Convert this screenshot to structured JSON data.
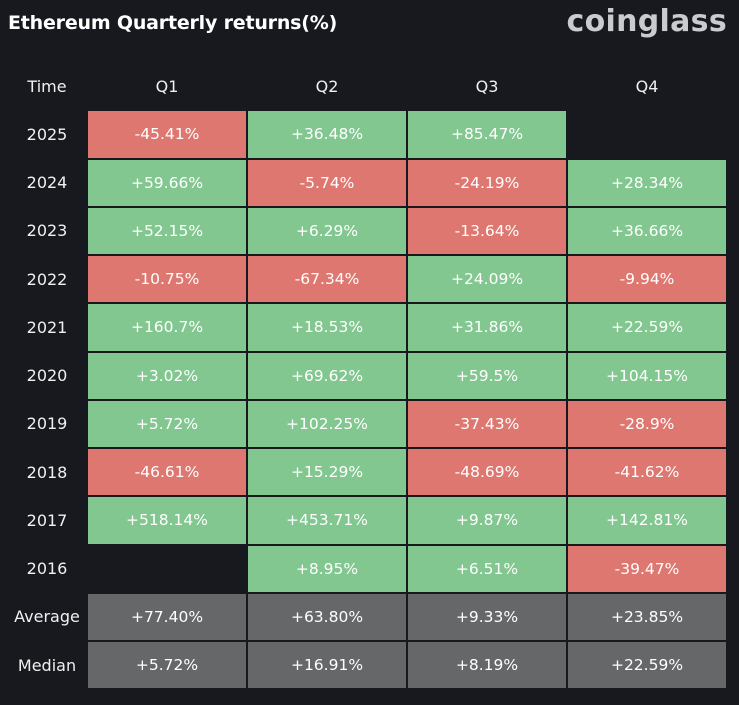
{
  "title": "Ethereum Quarterly returns(%)",
  "brand": "coinglass",
  "colors": {
    "positive": "#82c78f",
    "negative": "#df7771",
    "summary": "#666769",
    "background": "#17191f"
  },
  "chart_data": {
    "type": "heatmap",
    "title": "Ethereum Quarterly returns(%)",
    "corner_label": "Time",
    "columns": [
      "Q1",
      "Q2",
      "Q3",
      "Q4"
    ],
    "rows": [
      {
        "label": "2025",
        "cells": [
          "-45.41%",
          "+36.48%",
          "+85.47%",
          ""
        ]
      },
      {
        "label": "2024",
        "cells": [
          "+59.66%",
          "-5.74%",
          "-24.19%",
          "+28.34%"
        ]
      },
      {
        "label": "2023",
        "cells": [
          "+52.15%",
          "+6.29%",
          "-13.64%",
          "+36.66%"
        ]
      },
      {
        "label": "2022",
        "cells": [
          "-10.75%",
          "-67.34%",
          "+24.09%",
          "-9.94%"
        ]
      },
      {
        "label": "2021",
        "cells": [
          "+160.7%",
          "+18.53%",
          "+31.86%",
          "+22.59%"
        ]
      },
      {
        "label": "2020",
        "cells": [
          "+3.02%",
          "+69.62%",
          "+59.5%",
          "+104.15%"
        ]
      },
      {
        "label": "2019",
        "cells": [
          "+5.72%",
          "+102.25%",
          "-37.43%",
          "-28.9%"
        ]
      },
      {
        "label": "2018",
        "cells": [
          "-46.61%",
          "+15.29%",
          "-48.69%",
          "-41.62%"
        ]
      },
      {
        "label": "2017",
        "cells": [
          "+518.14%",
          "+453.71%",
          "+9.87%",
          "+142.81%"
        ]
      },
      {
        "label": "2016",
        "cells": [
          "",
          "+8.95%",
          "+6.51%",
          "-39.47%"
        ]
      }
    ],
    "summary_rows": [
      {
        "label": "Average",
        "cells": [
          "+77.40%",
          "+63.80%",
          "+9.33%",
          "+23.85%"
        ]
      },
      {
        "label": "Median",
        "cells": [
          "+5.72%",
          "+16.91%",
          "+8.19%",
          "+22.59%"
        ]
      }
    ]
  }
}
